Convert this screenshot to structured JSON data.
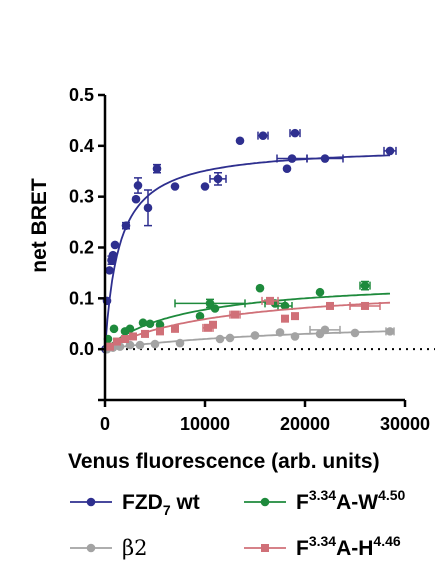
{
  "chart_data": {
    "type": "scatter",
    "xlabel": "Venus fluorescence (arb. units)",
    "ylabel": "net BRET",
    "xlim": [
      0,
      30000
    ],
    "ylim": [
      -0.1,
      0.5
    ],
    "x_ticks": [
      0,
      10000,
      20000,
      30000
    ],
    "x_tick_labels": [
      "0",
      "10000",
      "20000",
      "30000"
    ],
    "y_ticks": [
      0.0,
      0.1,
      0.2,
      0.3,
      0.4,
      0.5
    ],
    "y_tick_labels": [
      "0.0",
      "0.1",
      "0.2",
      "0.3",
      "0.4",
      "0.5"
    ],
    "baseline_dotted": 0,
    "legend_position": "bottom",
    "series": [
      {
        "name": "FZD7 wt",
        "label_main": "FZD",
        "label_sub": "7",
        "label_suffix": " wt",
        "color": "#2e2f8f",
        "marker": "circle",
        "fit": {
          "bmax": 0.4,
          "k": 1400
        },
        "points": [
          {
            "x": 50,
            "y": 0.0
          },
          {
            "x": 200,
            "y": 0.095
          },
          {
            "x": 450,
            "y": 0.155
          },
          {
            "x": 650,
            "y": 0.175,
            "yerr": 0.008
          },
          {
            "x": 800,
            "y": 0.185
          },
          {
            "x": 1000,
            "y": 0.205
          },
          {
            "x": 2100,
            "y": 0.243,
            "yerr": 0.006
          },
          {
            "x": 3100,
            "y": 0.295
          },
          {
            "x": 3300,
            "y": 0.322,
            "yerr": 0.015
          },
          {
            "x": 4300,
            "y": 0.278,
            "yerr": 0.035
          },
          {
            "x": 5200,
            "y": 0.355,
            "yerr": 0.008
          },
          {
            "x": 7000,
            "y": 0.32
          },
          {
            "x": 10000,
            "y": 0.32
          },
          {
            "x": 11300,
            "y": 0.335,
            "yerr": 0.012,
            "xerr": 800
          },
          {
            "x": 13500,
            "y": 0.41
          },
          {
            "x": 15800,
            "y": 0.42,
            "xerr": 500
          },
          {
            "x": 18200,
            "y": 0.355
          },
          {
            "x": 18700,
            "y": 0.375,
            "xerr": 1500
          },
          {
            "x": 19000,
            "y": 0.425,
            "xerr": 500
          },
          {
            "x": 22000,
            "y": 0.375,
            "xerr": 1800
          },
          {
            "x": 28500,
            "y": 0.39,
            "xerr": 600
          }
        ]
      },
      {
        "name": "F3.34A-W4.50",
        "label_main": "F",
        "label_sup1": "3.34",
        "label_mid": "A-W",
        "label_sup2": "4.50",
        "color": "#1e8a3c",
        "marker": "circle",
        "fit": {
          "bmax": 0.14,
          "k": 8000
        },
        "points": [
          {
            "x": 300,
            "y": 0.02
          },
          {
            "x": 900,
            "y": 0.04
          },
          {
            "x": 2000,
            "y": 0.035
          },
          {
            "x": 2500,
            "y": 0.04
          },
          {
            "x": 3800,
            "y": 0.052
          },
          {
            "x": 4500,
            "y": 0.05
          },
          {
            "x": 5500,
            "y": 0.048
          },
          {
            "x": 9500,
            "y": 0.065
          },
          {
            "x": 10500,
            "y": 0.09,
            "xerr": 3500,
            "yerr": 0.008
          },
          {
            "x": 11000,
            "y": 0.08
          },
          {
            "x": 15500,
            "y": 0.12
          },
          {
            "x": 17000,
            "y": 0.09,
            "xerr": 1000
          },
          {
            "x": 18000,
            "y": 0.085,
            "xerr": 700
          },
          {
            "x": 21500,
            "y": 0.112
          },
          {
            "x": 26000,
            "y": 0.125,
            "xerr": 500,
            "yerr": 0.008
          }
        ]
      },
      {
        "name": "β2",
        "label_main": "β2",
        "color": "#a3a3a3",
        "marker": "circle",
        "fit": {
          "bmax": 0.06,
          "k": 20000
        },
        "points": [
          {
            "x": 200,
            "y": 0.0
          },
          {
            "x": 800,
            "y": 0.003
          },
          {
            "x": 1500,
            "y": 0.005
          },
          {
            "x": 2500,
            "y": 0.008
          },
          {
            "x": 3500,
            "y": 0.008
          },
          {
            "x": 5000,
            "y": 0.01
          },
          {
            "x": 7500,
            "y": 0.012
          },
          {
            "x": 11500,
            "y": 0.02
          },
          {
            "x": 12500,
            "y": 0.022
          },
          {
            "x": 15000,
            "y": 0.027
          },
          {
            "x": 17500,
            "y": 0.033
          },
          {
            "x": 19000,
            "y": 0.025
          },
          {
            "x": 21500,
            "y": 0.03
          },
          {
            "x": 22000,
            "y": 0.038,
            "xerr": 1500
          },
          {
            "x": 25000,
            "y": 0.032
          },
          {
            "x": 28500,
            "y": 0.035,
            "xerr": 400
          }
        ]
      },
      {
        "name": "F3.34A-H4.46",
        "label_main": "F",
        "label_sup1": "3.34",
        "label_mid": "A-H",
        "label_sup2": "4.46",
        "color": "#d07078",
        "marker": "square",
        "fit": {
          "bmax": 0.13,
          "k": 12000
        },
        "points": [
          {
            "x": 500,
            "y": 0.005
          },
          {
            "x": 1200,
            "y": 0.015
          },
          {
            "x": 2000,
            "y": 0.02
          },
          {
            "x": 2800,
            "y": 0.025
          },
          {
            "x": 4000,
            "y": 0.03
          },
          {
            "x": 5500,
            "y": 0.035
          },
          {
            "x": 7000,
            "y": 0.04
          },
          {
            "x": 10300,
            "y": 0.042,
            "xerr": 500
          },
          {
            "x": 10800,
            "y": 0.048
          },
          {
            "x": 13000,
            "y": 0.068,
            "xerr": 500
          },
          {
            "x": 16500,
            "y": 0.095,
            "xerr": 800
          },
          {
            "x": 18000,
            "y": 0.06
          },
          {
            "x": 19000,
            "y": 0.065
          },
          {
            "x": 22500,
            "y": 0.085
          },
          {
            "x": 26000,
            "y": 0.085,
            "xerr": 1500
          }
        ]
      }
    ]
  }
}
